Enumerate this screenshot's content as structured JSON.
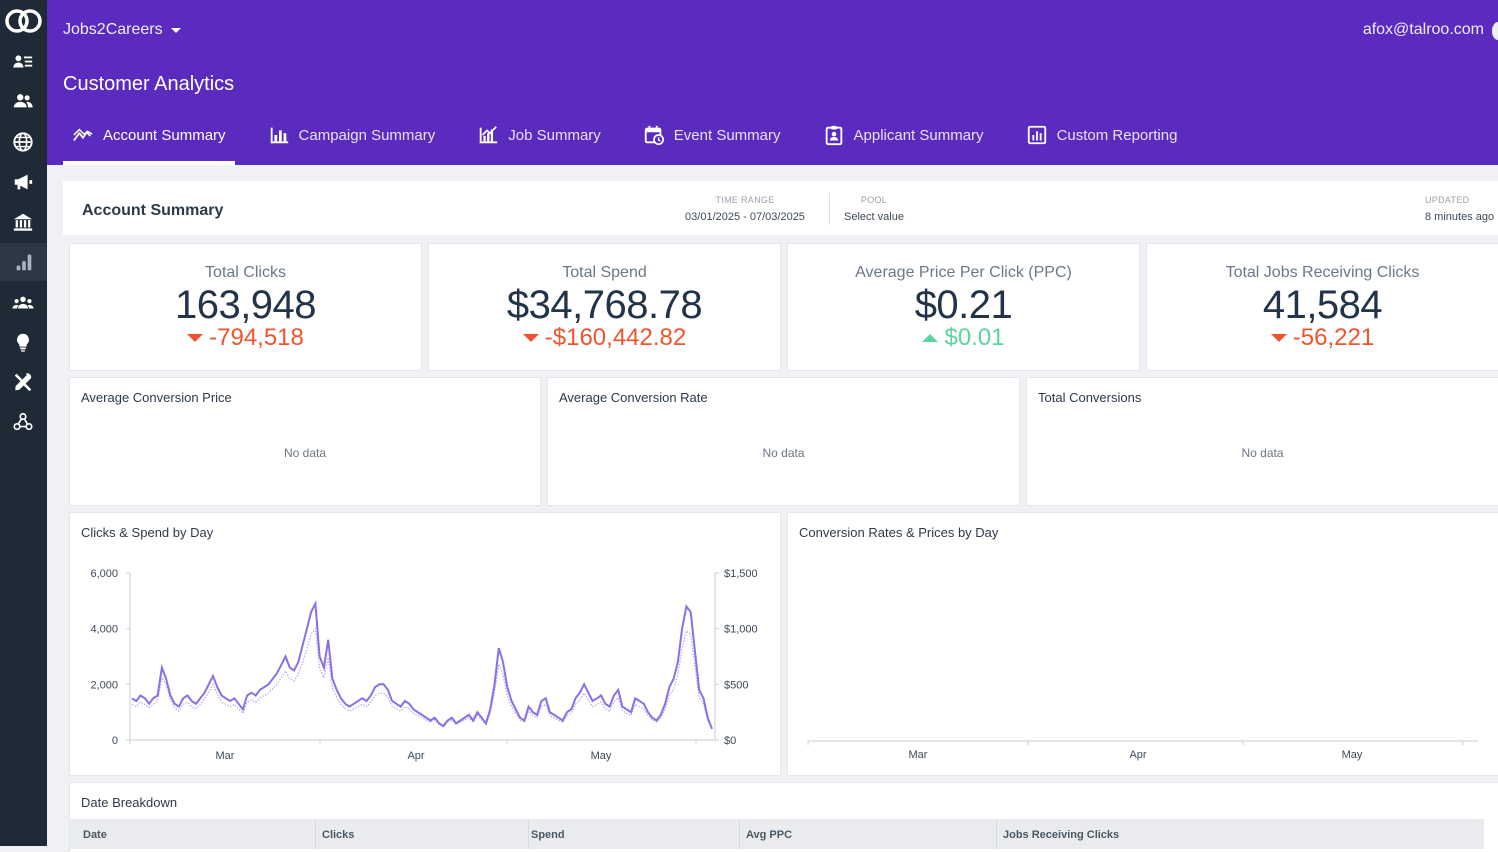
{
  "app": {
    "org_name": "Jobs2Careers",
    "user_email": "afox@talroo.com",
    "page_title": "Customer Analytics"
  },
  "sidebar": {
    "items": [
      {
        "icon": "user-list-icon"
      },
      {
        "icon": "users-icon"
      },
      {
        "icon": "globe-icon"
      },
      {
        "icon": "megaphone-icon"
      },
      {
        "icon": "bank-icon"
      },
      {
        "icon": "analytics-icon",
        "active": true
      },
      {
        "icon": "group-icon"
      },
      {
        "icon": "lightbulb-icon"
      },
      {
        "icon": "tools-icon"
      },
      {
        "icon": "webhook-icon"
      }
    ]
  },
  "tabs": [
    {
      "label": "Account Summary",
      "icon": "trend-icon",
      "active": true
    },
    {
      "label": "Campaign Summary",
      "icon": "bar-chart-icon"
    },
    {
      "label": "Job Summary",
      "icon": "chart-growth-icon"
    },
    {
      "label": "Event Summary",
      "icon": "calendar-clock-icon"
    },
    {
      "label": "Applicant Summary",
      "icon": "id-badge-icon"
    },
    {
      "label": "Custom Reporting",
      "icon": "report-icon"
    }
  ],
  "summary": {
    "title": "Account Summary",
    "time_range_label": "TIME RANGE",
    "time_range_value": "03/01/2025 - 07/03/2025",
    "pool_label": "POOL",
    "pool_value": "Select value",
    "updated_label": "UPDATED",
    "updated_value": "8 minutes ago"
  },
  "kpis": [
    {
      "label": "Total Clicks",
      "value": "163,948",
      "delta": "-794,518",
      "direction": "down"
    },
    {
      "label": "Total Spend",
      "value": "$34,768.78",
      "delta": "-$160,442.82",
      "direction": "down"
    },
    {
      "label": "Average Price Per Click (PPC)",
      "value": "$0.21",
      "delta": "$0.01",
      "direction": "up"
    },
    {
      "label": "Total Jobs Receiving Clicks",
      "value": "41,584",
      "delta": "-56,221",
      "direction": "down"
    }
  ],
  "metric_cards": [
    {
      "title": "Average Conversion Price",
      "empty_text": "No data"
    },
    {
      "title": "Average Conversion Rate",
      "empty_text": "No data"
    },
    {
      "title": "Total Conversions",
      "empty_text": "No data"
    }
  ],
  "colors": {
    "header": "#5b2bc0",
    "sidebar": "#1f2a36",
    "down": "#f0542d",
    "up": "#5bd4a0",
    "clicks_line": "#8b6fe8",
    "spend_line": "#b4a6f0"
  },
  "chart_data": [
    {
      "type": "line",
      "title": "Clicks & Spend by Day",
      "x_tick_labels": [
        "Mar",
        "Apr",
        "May"
      ],
      "y_left_ticks": [
        "0",
        "2,000",
        "4,000",
        "6,000"
      ],
      "y_left_range": [
        0,
        6000
      ],
      "y_right_ticks": [
        "$0",
        "$500",
        "$1,000",
        "$1,500"
      ],
      "y_right_range": [
        0,
        1500
      ],
      "series": [
        {
          "axis": "left",
          "style": "solid",
          "values": [
            1500,
            1400,
            1600,
            1500,
            1300,
            1500,
            1600,
            2600,
            2200,
            1600,
            1300,
            1200,
            1500,
            1600,
            1400,
            1300,
            1500,
            1700,
            2000,
            2300,
            1900,
            1600,
            1500,
            1400,
            1500,
            1300,
            1100,
            1600,
            1700,
            1600,
            1800,
            1900,
            2000,
            2200,
            2400,
            2700,
            3000,
            2600,
            2500,
            2800,
            3400,
            4000,
            4600,
            4900,
            3000,
            2600,
            3600,
            2200,
            1800,
            1500,
            1300,
            1200,
            1300,
            1400,
            1500,
            1400,
            1600,
            1900,
            2000,
            2000,
            1800,
            1400,
            1300,
            1200,
            1400,
            1300,
            1100,
            1000,
            900,
            800,
            700,
            800,
            600,
            500,
            700,
            800,
            600,
            700,
            800,
            900,
            700,
            1000,
            800,
            600,
            1100,
            2000,
            3300,
            2800,
            1900,
            1400,
            1100,
            800,
            700,
            1200,
            1000,
            900,
            1400,
            1500,
            1000,
            900,
            800,
            700,
            1000,
            1100,
            1500,
            1700,
            2000,
            1700,
            1400,
            1500,
            1600,
            1300,
            1200,
            1600,
            1800,
            1200,
            1100,
            1000,
            1500,
            1400,
            1300,
            1000,
            800,
            700,
            900,
            1300,
            1900,
            2200,
            2800,
            4000,
            4800,
            4600,
            3200,
            1800,
            1500,
            800,
            400
          ]
        },
        {
          "axis": "right",
          "style": "dotted",
          "values": [
            320,
            300,
            340,
            320,
            290,
            320,
            350,
            560,
            500,
            360,
            290,
            260,
            320,
            340,
            300,
            280,
            320,
            370,
            430,
            500,
            410,
            340,
            320,
            300,
            320,
            280,
            240,
            340,
            360,
            340,
            380,
            400,
            420,
            460,
            500,
            560,
            620,
            550,
            530,
            590,
            700,
            820,
            950,
            1000,
            640,
            560,
            740,
            470,
            380,
            320,
            280,
            260,
            280,
            300,
            320,
            300,
            340,
            400,
            420,
            420,
            380,
            300,
            280,
            260,
            300,
            280,
            240,
            220,
            200,
            180,
            160,
            180,
            140,
            120,
            160,
            180,
            140,
            160,
            180,
            200,
            160,
            220,
            180,
            140,
            240,
            420,
            680,
            590,
            400,
            300,
            240,
            180,
            160,
            260,
            220,
            200,
            300,
            320,
            220,
            200,
            180,
            160,
            220,
            240,
            320,
            360,
            420,
            360,
            300,
            320,
            340,
            280,
            260,
            340,
            380,
            260,
            240,
            220,
            320,
            300,
            280,
            220,
            180,
            160,
            200,
            280,
            400,
            460,
            590,
            820,
            980,
            950,
            660,
            380,
            320,
            180,
            100
          ]
        }
      ]
    },
    {
      "type": "line",
      "title": "Conversion Rates & Prices by Day",
      "x_tick_labels": [
        "Mar",
        "Apr",
        "May"
      ],
      "series": []
    }
  ],
  "table": {
    "title": "Date Breakdown",
    "columns": [
      "Date",
      "Clicks",
      "Spend",
      "Avg PPC",
      "Jobs Receiving Clicks"
    ]
  }
}
